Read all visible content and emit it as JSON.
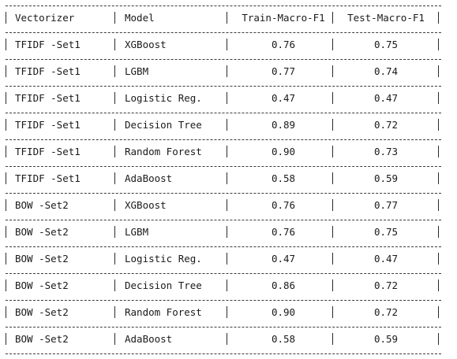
{
  "table": {
    "headers": [
      "Vectorizer",
      "Model",
      "Train-Macro-F1",
      "Test-Macro-F1"
    ],
    "rows": [
      [
        "TFIDF -Set1",
        "XGBoost",
        "0.76",
        "0.75"
      ],
      [
        "TFIDF -Set1",
        "LGBM",
        "0.77",
        "0.74"
      ],
      [
        "TFIDF -Set1",
        "Logistic Reg.",
        "0.47",
        "0.47"
      ],
      [
        "TFIDF -Set1",
        "Decision Tree",
        "0.89",
        "0.72"
      ],
      [
        "TFIDF -Set1",
        "Random Forest",
        "0.90",
        "0.73"
      ],
      [
        "TFIDF -Set1",
        "AdaBoost",
        "0.58",
        "0.59"
      ],
      [
        "BOW -Set2",
        "XGBoost",
        "0.76",
        "0.77"
      ],
      [
        "BOW -Set2",
        "LGBM",
        "0.76",
        "0.75"
      ],
      [
        "BOW -Set2",
        "Logistic Reg.",
        "0.47",
        "0.47"
      ],
      [
        "BOW -Set2",
        "Decision Tree",
        "0.86",
        "0.72"
      ],
      [
        "BOW -Set2",
        "Random Forest",
        "0.90",
        "0.72"
      ],
      [
        "BOW -Set2",
        "AdaBoost",
        "0.58",
        "0.59"
      ]
    ]
  }
}
